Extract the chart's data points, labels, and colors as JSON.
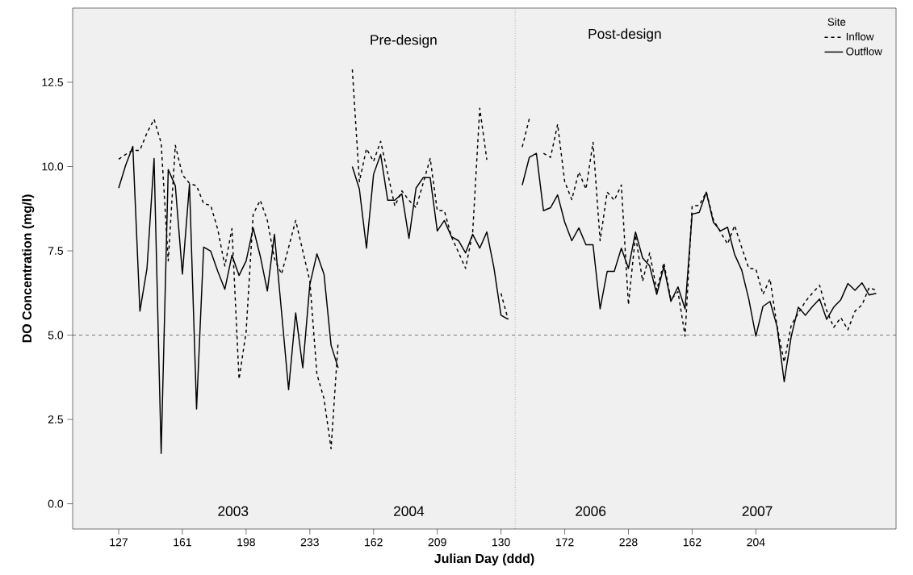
{
  "chart_data": {
    "type": "line",
    "xlabel": "Julian Day (ddd)",
    "ylabel": "DO Concentration (mg/l)",
    "legend_title": "Site",
    "legend": "top right",
    "marker": "none",
    "categories": [
      "127",
      null,
      null,
      null,
      null,
      null,
      null,
      null,
      null,
      "161",
      null,
      null,
      null,
      null,
      null,
      null,
      null,
      null,
      "198",
      null,
      null,
      null,
      null,
      null,
      null,
      null,
      null,
      "233",
      null,
      null,
      null,
      null,
      null,
      null,
      null,
      null,
      "162",
      null,
      null,
      null,
      null,
      null,
      null,
      null,
      null,
      "209",
      null,
      null,
      null,
      null,
      null,
      null,
      null,
      null,
      "130",
      null,
      null,
      null,
      null,
      null,
      null,
      null,
      null,
      "172",
      null,
      null,
      null,
      null,
      null,
      null,
      null,
      null,
      "228",
      null,
      null,
      null,
      null,
      null,
      null,
      null,
      null,
      "162",
      null,
      null,
      null,
      null,
      null,
      null,
      null,
      null,
      "204",
      null,
      null,
      null,
      null,
      null,
      null,
      null,
      null,
      null,
      null,
      null,
      null,
      null,
      null,
      null,
      null,
      null
    ],
    "ylim": [
      -0.75,
      14.7
    ],
    "yticks": [
      {
        "value": 0,
        "label": "0.0"
      },
      2.5,
      {
        "value": 5,
        "label": "5.0"
      },
      7.5,
      {
        "value": 10,
        "label": "10.0"
      },
      12.5
    ],
    "series": [
      {
        "name": "Inflow",
        "color": "#000000",
        "line_style": "dashed",
        "values": [
          10.22,
          10.36,
          10.48,
          10.48,
          11.0,
          11.4,
          10.7,
          7.2,
          10.63,
          9.76,
          9.5,
          9.43,
          8.9,
          8.85,
          8.13,
          7.05,
          8.16,
          3.69,
          5.1,
          8.59,
          9.0,
          8.4,
          7.27,
          6.81,
          7.6,
          8.4,
          7.5,
          6.6,
          3.84,
          3.12,
          1.63,
          4.8,
          null,
          12.88,
          9.55,
          10.53,
          10.15,
          10.75,
          9.8,
          8.83,
          9.28,
          9.0,
          8.78,
          9.5,
          10.24,
          8.69,
          8.69,
          7.92,
          7.45,
          6.98,
          8.04,
          11.73,
          10.2,
          null,
          6.24,
          5.47,
          null,
          10.58,
          11.42,
          null,
          10.39,
          10.27,
          11.25,
          9.55,
          9.02,
          9.84,
          9.33,
          10.72,
          7.8,
          9.24,
          9.0,
          9.45,
          5.9,
          7.97,
          6.6,
          7.44,
          6.33,
          7.15,
          6.05,
          6.29,
          4.97,
          8.83,
          8.85,
          9.24,
          8.42,
          8.06,
          7.7,
          8.25,
          7.6,
          6.98,
          6.96,
          6.21,
          6.67,
          5.25,
          4.2,
          5.3,
          5.65,
          6.0,
          6.25,
          6.48,
          5.73,
          5.23,
          5.52,
          5.16,
          5.71,
          5.9,
          6.41,
          6.33
        ]
      },
      {
        "name": "Outflow",
        "color": "#000000",
        "line_style": "solid",
        "values": [
          9.36,
          10.05,
          10.6,
          5.71,
          6.98,
          10.24,
          1.49,
          9.91,
          9.43,
          6.81,
          9.48,
          2.81,
          7.61,
          7.49,
          6.89,
          6.36,
          7.37,
          6.77,
          7.2,
          8.18,
          7.34,
          6.31,
          7.99,
          5.7,
          3.38,
          5.66,
          4.03,
          6.5,
          7.41,
          6.81,
          4.7,
          4.03,
          null,
          10.0,
          9.33,
          7.58,
          9.77,
          10.36,
          9.0,
          9.0,
          9.19,
          7.87,
          9.36,
          9.67,
          9.67,
          8.09,
          8.4,
          7.92,
          7.8,
          7.44,
          7.99,
          7.58,
          8.06,
          7.0,
          5.59,
          5.47,
          null,
          9.45,
          10.27,
          10.39,
          8.69,
          8.78,
          9.16,
          8.35,
          7.8,
          8.18,
          7.68,
          7.68,
          5.78,
          6.89,
          6.89,
          7.58,
          6.98,
          8.06,
          7.29,
          7.05,
          6.21,
          7.03,
          6.0,
          6.43,
          5.78,
          8.59,
          8.64,
          9.24,
          8.35,
          8.09,
          8.2,
          7.39,
          6.93,
          6.07,
          4.97,
          5.85,
          6.0,
          5.25,
          3.62,
          4.97,
          5.83,
          5.59,
          5.85,
          6.07,
          5.47,
          5.83,
          6.05,
          6.53,
          6.33,
          6.55,
          6.19,
          6.24
        ]
      }
    ],
    "ref_lines": [
      {
        "axis": "y",
        "value": 5,
        "line_style": "dashed"
      }
    ],
    "annotations": [
      "2003",
      "2004",
      "2006",
      "2007",
      "Pre-design",
      "Post-design"
    ]
  }
}
